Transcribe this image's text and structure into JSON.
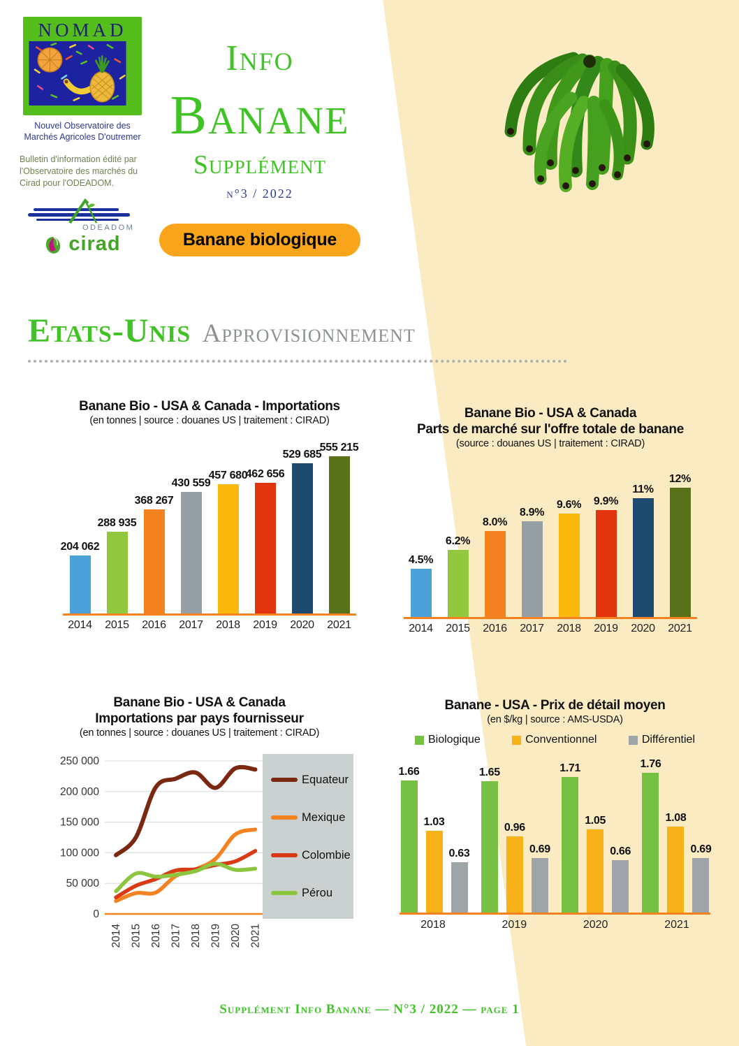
{
  "header": {
    "logo": {
      "name": "NOMAD",
      "subtitle": "Nouvel Observatoire des Marchés Agricoles D'outremer",
      "bulletin": "Bulletin d'information édité par l'Observatoire des marchés du Cirad pour l'ODEADOM.",
      "odeadom_label": "ODEADOM",
      "cirad_label": "cirad"
    },
    "title_word1": "Info",
    "title_word2": "Banane",
    "title_word3": "Supplément",
    "issue": "n°3 / 2022",
    "badge": "Banane biologique"
  },
  "section": {
    "title_green": "Etats-Unis",
    "title_gray": "Approvisionnement"
  },
  "chart_data": [
    {
      "id": "imports",
      "type": "bar",
      "title": "Banane Bio - USA & Canada - Importations",
      "subtitle": "(en tonnes | source : douanes US | traitement : CIRAD)",
      "categories": [
        "2014",
        "2015",
        "2016",
        "2017",
        "2018",
        "2019",
        "2020",
        "2021"
      ],
      "values": [
        204062,
        288935,
        368267,
        430559,
        457680,
        462656,
        529685,
        555215
      ],
      "value_labels": [
        "204 062",
        "288 935",
        "368 267",
        "430 559",
        "457 680",
        "462 656",
        "529 685",
        "555 215"
      ],
      "bar_colors": [
        "#4BA2DA",
        "#92C83E",
        "#F58220",
        "#96A0A4",
        "#FBB80D",
        "#E2350E",
        "#1F4A70",
        "#59721A"
      ],
      "ylim": [
        0,
        555215
      ],
      "grid": false,
      "legend_position": "none"
    },
    {
      "id": "market-share",
      "type": "bar",
      "title": "Banane Bio - USA & Canada",
      "title2": "Parts de marché sur l'offre totale de banane",
      "subtitle": "(source : douanes US | traitement : CIRAD)",
      "categories": [
        "2014",
        "2015",
        "2016",
        "2017",
        "2018",
        "2019",
        "2020",
        "2021"
      ],
      "values": [
        4.5,
        6.2,
        8.0,
        8.9,
        9.6,
        9.9,
        11,
        12
      ],
      "value_labels": [
        "4.5%",
        "6.2%",
        "8.0%",
        "8.9%",
        "9.6%",
        "9.9%",
        "11%",
        "12%"
      ],
      "bar_colors": [
        "#4BA2DA",
        "#92C83E",
        "#F58220",
        "#96A0A4",
        "#FBB80D",
        "#E2350E",
        "#1F4A70",
        "#59721A"
      ],
      "ylim": [
        0,
        12
      ],
      "grid": false,
      "legend_position": "none"
    },
    {
      "id": "imports-by-country",
      "type": "line",
      "title": "Banane Bio - USA & Canada",
      "title2": "Importations par pays fournisseur",
      "subtitle": "(en tonnes | source : douanes US | traitement : CIRAD)",
      "x": [
        "2014",
        "2015",
        "2016",
        "2017",
        "2018",
        "2019",
        "2020",
        "2021"
      ],
      "ylim": [
        0,
        250000
      ],
      "yticks": [
        0,
        50000,
        100000,
        150000,
        200000,
        250000
      ],
      "ytick_labels": [
        "0",
        "50 000",
        "100 000",
        "150 000",
        "200 000",
        "250 000"
      ],
      "grid": true,
      "legend_position": "right",
      "series": [
        {
          "name": "Equateur",
          "color": "#7A2810",
          "values": [
            96000,
            125000,
            207000,
            221000,
            231000,
            206000,
            238000,
            236000
          ]
        },
        {
          "name": "Mexique",
          "color": "#F58220",
          "values": [
            21000,
            34000,
            35000,
            62000,
            73000,
            90000,
            130000,
            138000
          ]
        },
        {
          "name": "Colombie",
          "color": "#D93B16",
          "values": [
            27000,
            46000,
            57000,
            71000,
            73000,
            80000,
            86000,
            103000
          ]
        },
        {
          "name": "Pérou",
          "color": "#8CC63E",
          "values": [
            37000,
            66000,
            61000,
            64000,
            70000,
            82000,
            72000,
            74000
          ]
        }
      ]
    },
    {
      "id": "retail-price",
      "type": "bar",
      "title": "Banane  - USA - Prix de détail moyen",
      "subtitle": "(en $/kg | source : AMS-USDA)",
      "categories": [
        "2018",
        "2019",
        "2020",
        "2021"
      ],
      "ylim": [
        0,
        1.76
      ],
      "grid": false,
      "legend_position": "top",
      "series": [
        {
          "name": "Biologique",
          "color": "#76C043",
          "values": [
            1.66,
            1.65,
            1.71,
            1.76
          ]
        },
        {
          "name": "Conventionnel",
          "color": "#F7B219",
          "values": [
            1.03,
            0.96,
            1.05,
            1.08
          ]
        },
        {
          "name": "Différentiel",
          "color": "#9DA5A8",
          "values": [
            0.63,
            0.69,
            0.66,
            0.69
          ]
        }
      ]
    }
  ],
  "footer": {
    "text": "Supplément Info Banane — N°3 / 2022 — page 1"
  },
  "colors": {
    "accent_green": "#3FC325",
    "navy": "#2B3990",
    "badge_orange": "#F9A51B",
    "beige_background": "#FAEBC2",
    "axis_orange": "#F58220",
    "legend_panel_gray": "#CBD1D0"
  }
}
